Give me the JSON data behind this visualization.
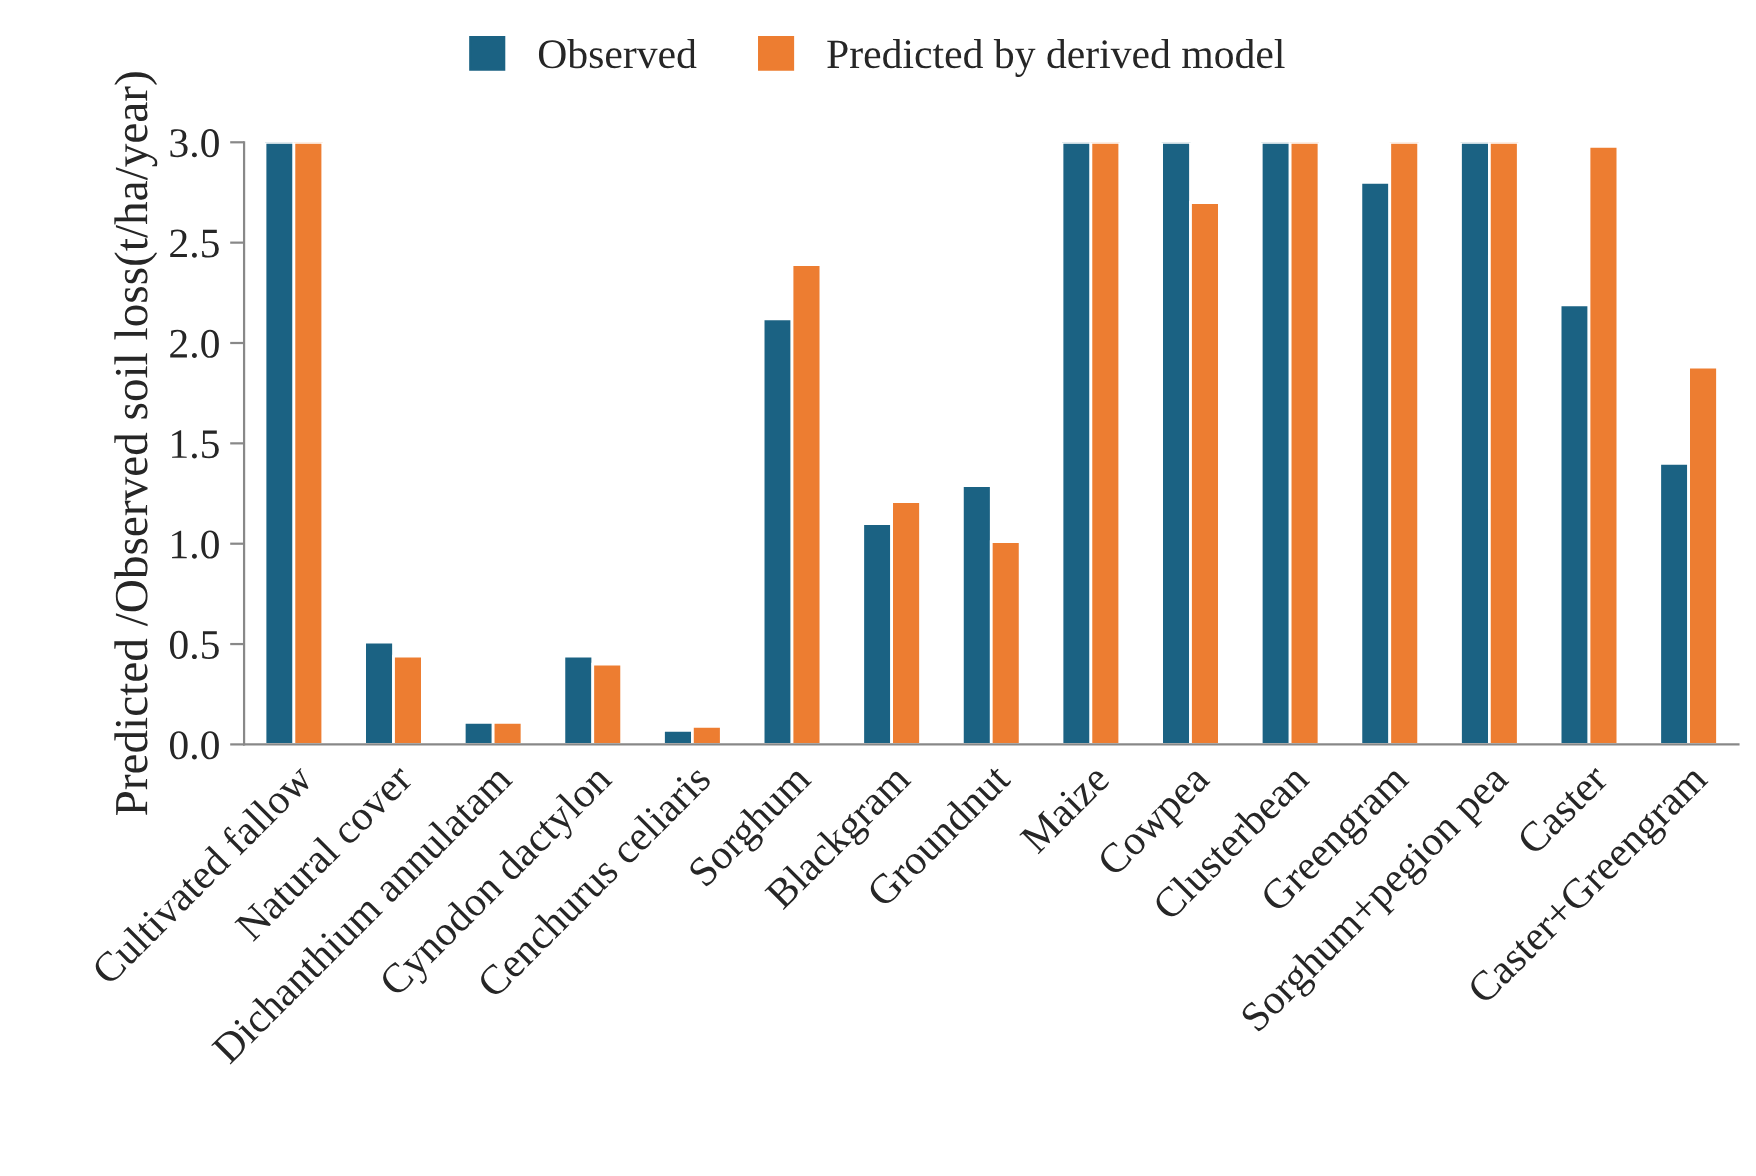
{
  "chart_data": {
    "type": "bar",
    "ylabel": "Predicted /Observed soil loss(t/ha/year)",
    "categories": [
      "Cultivated fallow",
      "Natural cover",
      "Dichanthium annulatam",
      "Cynodon dactylon",
      "Cenchurus celiaris",
      "Sorghum",
      "Blackgram",
      "Groundnut",
      "Maize",
      "Cowpea",
      "Clusterbean",
      "Greengram",
      "Sorghum+pegion pea",
      "Caster",
      "Caster+Greengram"
    ],
    "series": [
      {
        "name": "Observed",
        "color": "#1b6283",
        "values": [
          3.0,
          0.51,
          0.11,
          0.44,
          0.07,
          2.12,
          1.1,
          1.29,
          3.0,
          3.0,
          3.0,
          2.8,
          3.0,
          2.19,
          1.4
        ]
      },
      {
        "name": "Predicted by derived model",
        "color": "#ed7d31",
        "values": [
          3.0,
          0.44,
          0.11,
          0.4,
          0.09,
          2.39,
          1.21,
          1.01,
          3.0,
          2.7,
          3.0,
          3.0,
          3.0,
          2.98,
          1.88
        ]
      }
    ],
    "ylim": [
      0,
      3
    ],
    "yticks": [
      {
        "value": 0,
        "label": "0.0"
      },
      {
        "value": 0.5,
        "label": "0.5"
      },
      {
        "value": 1,
        "label": "1.0"
      },
      {
        "value": 1.5,
        "label": "1.5"
      },
      {
        "value": 2,
        "label": "2.0"
      },
      {
        "value": 2.5,
        "label": "2.5"
      },
      {
        "value": 3,
        "label": "3.0"
      }
    ],
    "grid": false,
    "legend": "top"
  }
}
